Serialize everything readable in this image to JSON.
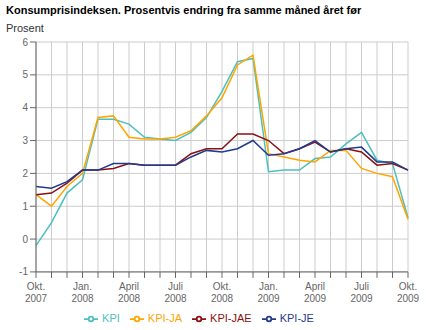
{
  "chart_data": {
    "type": "line",
    "title": "Konsumprisindeksen. Prosentvis endring fra samme måned året før",
    "ylabel": "Prosent",
    "categories": [
      "Okt.\n2007",
      null,
      null,
      "Jan.\n2008",
      null,
      null,
      "April\n2008",
      null,
      null,
      "Juli\n2008",
      null,
      null,
      "Okt.\n2008",
      null,
      null,
      "Jan.\n2009",
      null,
      null,
      "April\n2009",
      null,
      null,
      "Juli\n2009",
      null,
      null,
      "Okt.\n2009"
    ],
    "series": [
      {
        "name": "KPI",
        "color": "#4DBFBF",
        "values": [
          -0.2,
          0.5,
          1.4,
          1.8,
          3.65,
          3.65,
          3.5,
          3.1,
          3.05,
          3.0,
          3.25,
          3.7,
          4.5,
          5.4,
          5.5,
          2.05,
          2.1,
          2.1,
          2.45,
          2.5,
          2.9,
          3.25,
          2.4,
          2.3,
          0.65
        ]
      },
      {
        "name": "KPI-JA",
        "color": "#FFA500",
        "values": [
          1.35,
          1.0,
          1.6,
          2.0,
          3.7,
          3.75,
          3.1,
          3.05,
          3.05,
          3.1,
          3.3,
          3.75,
          4.3,
          5.3,
          5.6,
          2.6,
          2.5,
          2.4,
          2.35,
          2.7,
          2.7,
          2.15,
          2.0,
          1.9,
          0.6
        ]
      },
      {
        "name": "KPI-JAE",
        "color": "#8B1010",
        "values": [
          1.35,
          1.4,
          1.7,
          2.1,
          2.1,
          2.15,
          2.3,
          2.25,
          2.25,
          2.25,
          2.6,
          2.75,
          2.75,
          3.2,
          3.2,
          3.0,
          2.6,
          2.75,
          2.95,
          2.65,
          2.75,
          2.65,
          2.25,
          2.3,
          2.1
        ]
      },
      {
        "name": "KPI-JE",
        "color": "#1F3A8F",
        "values": [
          1.6,
          1.55,
          1.75,
          2.1,
          2.1,
          2.3,
          2.3,
          2.25,
          2.25,
          2.25,
          2.5,
          2.7,
          2.65,
          2.75,
          3.0,
          2.55,
          2.6,
          2.75,
          3.0,
          2.65,
          2.75,
          2.8,
          2.35,
          2.35,
          2.1
        ]
      }
    ],
    "ylim": [
      -1,
      6
    ],
    "yticks": [
      -1,
      0,
      1,
      2,
      3,
      4,
      5,
      6
    ],
    "grid": true,
    "legend": "bottom"
  }
}
